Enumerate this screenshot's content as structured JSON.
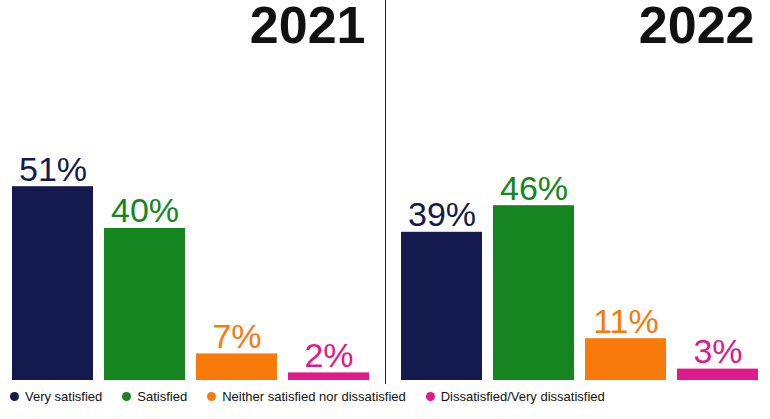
{
  "chart_data": {
    "type": "bar",
    "categories": [
      "2021",
      "2022"
    ],
    "series": [
      {
        "name": "Very satisfied",
        "color": "#141a4e",
        "values": [
          51,
          39
        ],
        "value_labels": [
          "51%",
          "39%"
        ]
      },
      {
        "name": "Satisfied",
        "color": "#15851f",
        "values": [
          40,
          46
        ],
        "value_labels": [
          "40%",
          "46%"
        ]
      },
      {
        "name": "Neither satisfied nor dissatisfied",
        "color": "#f77a0a",
        "values": [
          7,
          11
        ],
        "value_labels": [
          "7%",
          "11%"
        ]
      },
      {
        "name": "Dissatisfied/Very dissatisfied",
        "color": "#e0198c",
        "values": [
          2,
          3
        ],
        "value_labels": [
          "2%",
          "3%"
        ]
      }
    ],
    "ylim": [
      0,
      100
    ],
    "data_labels": true,
    "tick_labels": false,
    "legend": "bottom"
  }
}
